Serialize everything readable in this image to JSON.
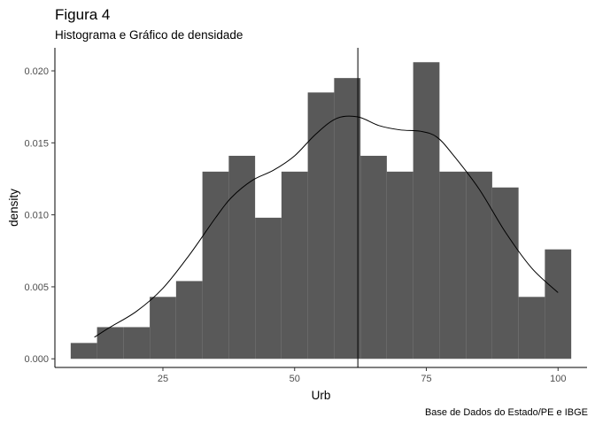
{
  "chart_data": {
    "type": "bar",
    "title": "Figura 4",
    "subtitle": "Histograma e Gráfico de densidade",
    "caption": "Base de Dados do Estado/PE e IBGE",
    "xlabel": "Urb",
    "ylabel": "density",
    "xlim": [
      4.5,
      105.5
    ],
    "ylim": [
      -0.0006,
      0.0216
    ],
    "x_ticks": [
      25,
      50,
      75,
      100
    ],
    "x_tick_labels": [
      "25",
      "50",
      "75",
      "100"
    ],
    "y_ticks": [
      0.0,
      0.005,
      0.01,
      0.015,
      0.02
    ],
    "y_tick_labels": [
      "0.000",
      "0.005",
      "0.010",
      "0.015",
      "0.020"
    ],
    "grid": false,
    "bar_color": "#595959",
    "vline": 62,
    "bins": [
      {
        "x0": 7.5,
        "x1": 12.5,
        "density": 0.0011
      },
      {
        "x0": 12.5,
        "x1": 17.5,
        "density": 0.0022
      },
      {
        "x0": 17.5,
        "x1": 22.5,
        "density": 0.0022
      },
      {
        "x0": 22.5,
        "x1": 27.5,
        "density": 0.0043
      },
      {
        "x0": 27.5,
        "x1": 32.5,
        "density": 0.0054
      },
      {
        "x0": 32.5,
        "x1": 37.5,
        "density": 0.013
      },
      {
        "x0": 37.5,
        "x1": 42.5,
        "density": 0.0141
      },
      {
        "x0": 42.5,
        "x1": 47.5,
        "density": 0.0098
      },
      {
        "x0": 47.5,
        "x1": 52.5,
        "density": 0.013
      },
      {
        "x0": 52.5,
        "x1": 57.5,
        "density": 0.0185
      },
      {
        "x0": 57.5,
        "x1": 62.5,
        "density": 0.0195
      },
      {
        "x0": 62.5,
        "x1": 67.5,
        "density": 0.0141
      },
      {
        "x0": 67.5,
        "x1": 72.5,
        "density": 0.013
      },
      {
        "x0": 72.5,
        "x1": 77.5,
        "density": 0.0206
      },
      {
        "x0": 77.5,
        "x1": 82.5,
        "density": 0.013
      },
      {
        "x0": 82.5,
        "x1": 87.5,
        "density": 0.013
      },
      {
        "x0": 87.5,
        "x1": 92.5,
        "density": 0.0119
      },
      {
        "x0": 92.5,
        "x1": 97.5,
        "density": 0.0043
      },
      {
        "x0": 97.5,
        "x1": 102.5,
        "density": 0.0076
      }
    ],
    "density_curve": {
      "x": [
        12,
        15,
        20,
        25,
        30,
        35,
        38,
        42,
        46,
        50,
        54,
        58,
        62,
        66,
        70,
        74,
        77,
        80,
        85,
        90,
        95,
        100
      ],
      "y": [
        0.0015,
        0.0022,
        0.0033,
        0.0049,
        0.0072,
        0.0098,
        0.0112,
        0.0124,
        0.0131,
        0.0141,
        0.0156,
        0.0167,
        0.0168,
        0.0162,
        0.0159,
        0.0158,
        0.0154,
        0.0142,
        0.0118,
        0.0088,
        0.0063,
        0.0046
      ]
    }
  }
}
